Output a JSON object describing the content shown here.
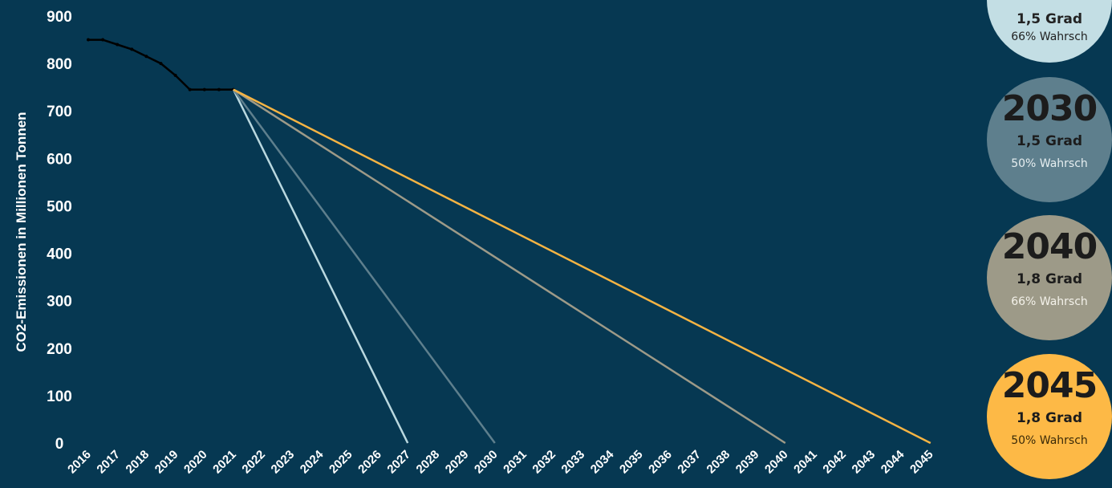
{
  "chart_data": {
    "type": "line",
    "title": "",
    "ylabel": "CO2-Emissionen in Millionen Tonnen",
    "xlabel": "",
    "ylim": [
      0,
      900
    ],
    "yticks": [
      0,
      100,
      200,
      300,
      400,
      500,
      600,
      700,
      800,
      900
    ],
    "x_categories": [
      "2016",
      "2017",
      "2018",
      "2019",
      "2020",
      "2021",
      "2022",
      "2023",
      "2024",
      "2025",
      "2026",
      "2027",
      "2028",
      "2029",
      "2030",
      "2031",
      "2032",
      "2033",
      "2034",
      "2035",
      "2036",
      "2037",
      "2038",
      "2039",
      "2040",
      "2041",
      "2042",
      "2043",
      "2044",
      "2045"
    ],
    "grid": false,
    "series": [
      {
        "color": "#000000",
        "x": [
          2016,
          2016.5,
          2017,
          2017.5,
          2018,
          2018.5,
          2019,
          2019.5,
          2020,
          2020.5,
          2021
        ],
        "values": [
          850,
          850,
          840,
          830,
          815,
          800,
          775,
          745,
          745,
          745,
          745
        ]
      },
      {
        "color": "#b9d8df",
        "x": [
          2021,
          2027
        ],
        "values": [
          745,
          0
        ]
      },
      {
        "color": "#5e7f8d",
        "x": [
          2021,
          2030
        ],
        "values": [
          745,
          0
        ]
      },
      {
        "color": "#9d9a88",
        "x": [
          2021,
          2040
        ],
        "values": [
          745,
          0
        ]
      },
      {
        "color": "#f6b443",
        "x": [
          2021,
          2045
        ],
        "values": [
          745,
          0
        ]
      }
    ]
  },
  "badges": [
    {
      "year": "",
      "grad": "1,5 Grad",
      "prob": "66% Wahrsch",
      "bg": "#c3dee4"
    },
    {
      "year": "2030",
      "grad": "1,5 Grad",
      "prob": "50% Wahrsch",
      "bg": "#5e7f8d"
    },
    {
      "year": "2040",
      "grad": "1,8 Grad",
      "prob": "66% Wahrsch",
      "bg": "#9d9a88"
    },
    {
      "year": "2045",
      "grad": "1,8 Grad",
      "prob": "50% Wahrsch",
      "bg": "#fdb946"
    }
  ]
}
